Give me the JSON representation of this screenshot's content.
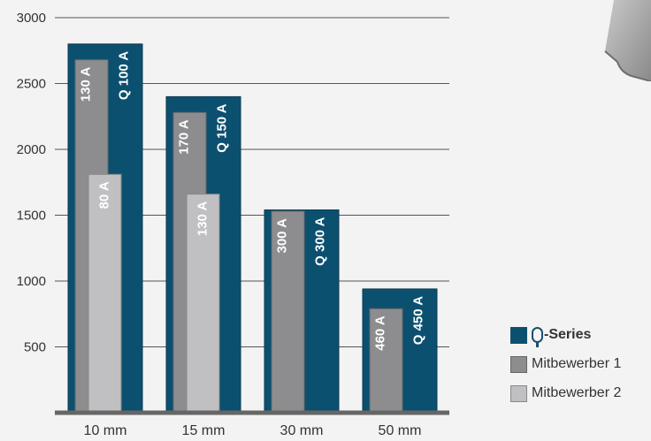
{
  "chart_data": {
    "type": "bar",
    "categories": [
      "10 mm",
      "15 mm",
      "30 mm",
      "50 mm"
    ],
    "ylim": [
      0,
      3000
    ],
    "yticks": [
      500,
      1000,
      1500,
      2000,
      2500,
      3000
    ],
    "grid": true,
    "legend_position": "bottom-right",
    "series": [
      {
        "name": "Q-Series",
        "color": "#0c5070",
        "values": [
          2800,
          2400,
          1540,
          940
        ],
        "labels": [
          "Q 100 A",
          "Q 150 A",
          "Q 300 A",
          "Q 450 A"
        ]
      },
      {
        "name": "Mitbewerber 1",
        "color": "#8d8d90",
        "values": [
          2680,
          2280,
          1530,
          790
        ],
        "labels": [
          "130 A",
          "170 A",
          "300 A",
          "460 A"
        ]
      },
      {
        "name": "Mitbewerber 2",
        "color": "#c0c0c2",
        "values": [
          1810,
          1660,
          null,
          null
        ],
        "labels": [
          "80 A",
          "130 A",
          null,
          null
        ]
      }
    ]
  },
  "legend": {
    "items": [
      {
        "label": "-Series",
        "color": "#0c5070",
        "icon": "q-logo-icon"
      },
      {
        "label": "Mitbewerber 1",
        "color": "#8d8d90"
      },
      {
        "label": "Mitbewerber 2",
        "color": "#c0c0c2"
      }
    ]
  }
}
